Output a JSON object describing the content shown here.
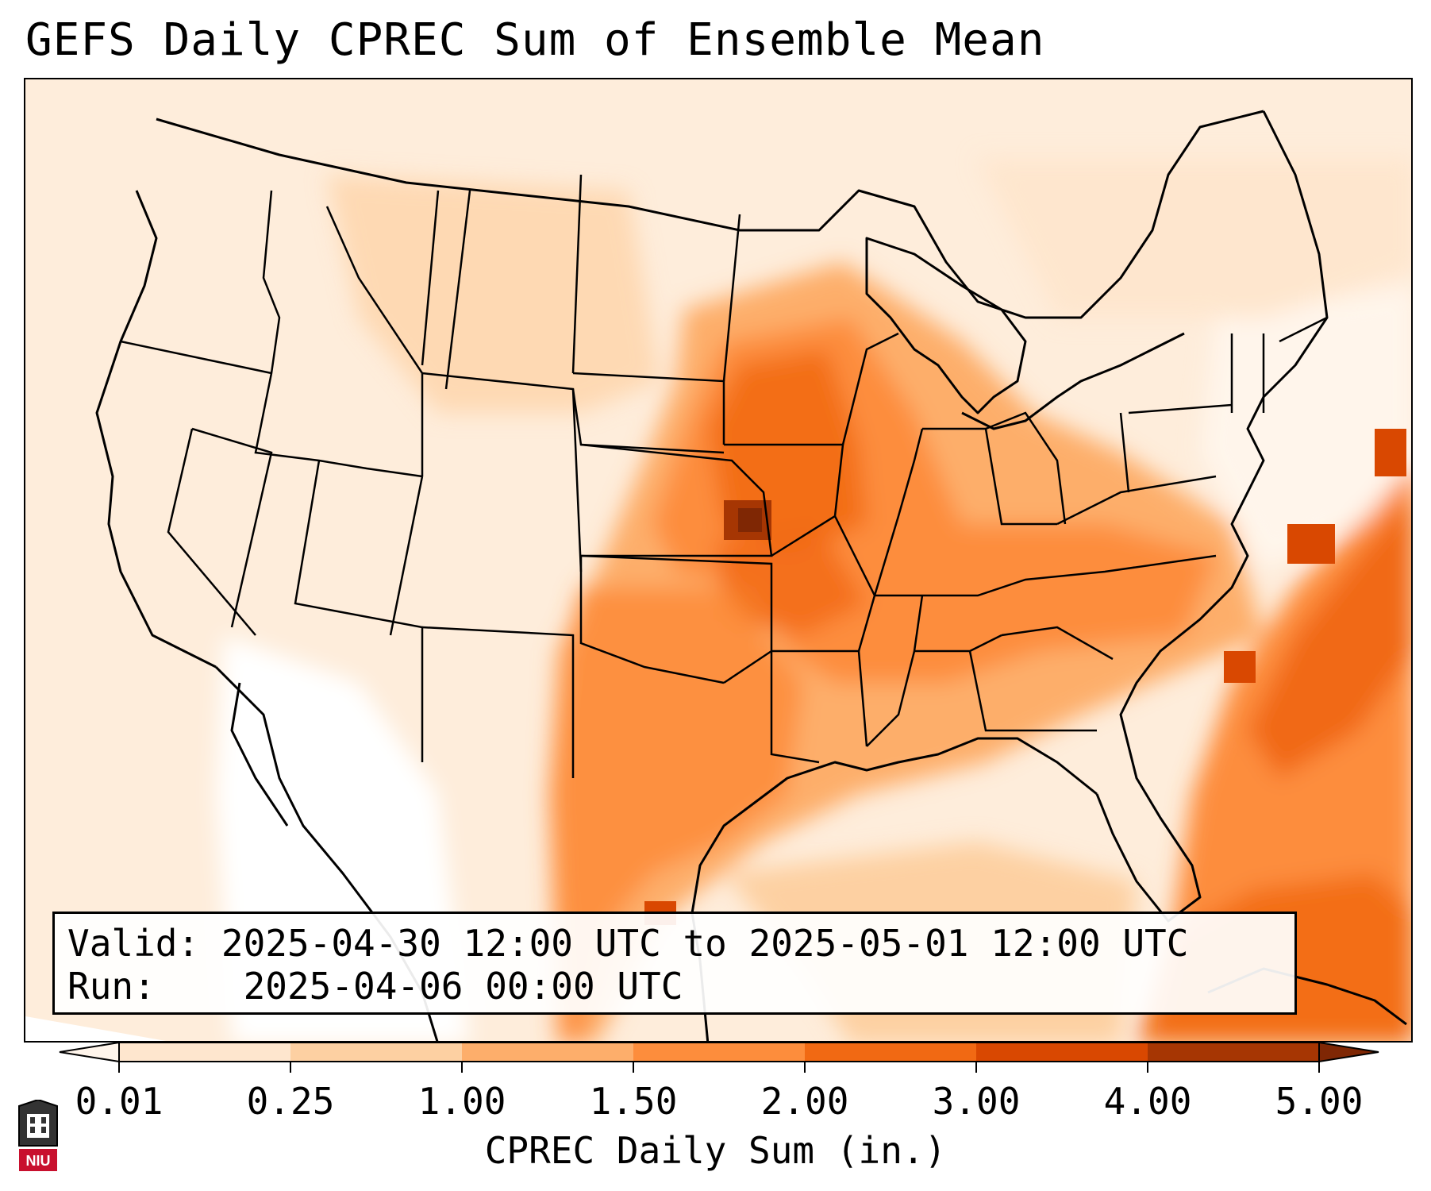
{
  "title": "GEFS Daily CPREC Sum of Ensemble Mean",
  "info": {
    "valid_label": "Valid:",
    "valid_value": "2025-04-30 12:00 UTC to 2025-05-01 12:00 UTC",
    "run_label": "Run:",
    "run_value": "2025-04-06 00:00 UTC"
  },
  "colorbar": {
    "label": "CPREC Daily Sum (in.)",
    "ticks": [
      "0.01",
      "0.25",
      "1.00",
      "1.50",
      "2.00",
      "3.00",
      "4.00",
      "5.00"
    ],
    "colors": [
      "#fff5eb",
      "#fee6ce",
      "#fdd0a2",
      "#fdae6b",
      "#fd8d3c",
      "#f16913",
      "#d94801",
      "#a63603",
      "#7f2704"
    ],
    "extend": "both"
  },
  "logo": {
    "text": "NIU"
  },
  "map": {
    "region": "Contiguous United States",
    "heaviest_precip_area": "Kansas/Missouri and western Atlantic off the Carolinas"
  }
}
